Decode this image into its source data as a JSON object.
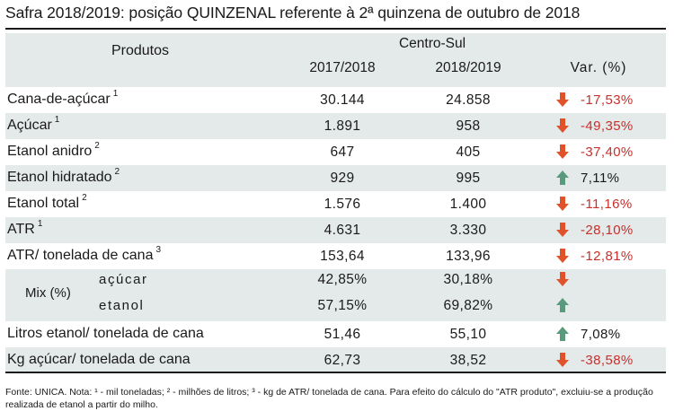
{
  "title": "Safra 2018/2019: posição QUINZENAL referente à 2ª quinzena de outubro de 2018",
  "header": {
    "produtos": "Produtos",
    "region": "Centro-Sul",
    "col1": "2017/2018",
    "col2": "2018/2019",
    "col3": "Var. (%)"
  },
  "rows": [
    {
      "label": "Cana-de-açúcar",
      "sup": "1",
      "v1": "30.144",
      "v2": "24.858",
      "var": "-17,53%",
      "trend": "down"
    },
    {
      "label": "Açúcar",
      "sup": "1",
      "v1": "1.891",
      "v2": "958",
      "var": "-49,35%",
      "trend": "down"
    },
    {
      "label": "Etanol anidro",
      "sup": "2",
      "v1": "647",
      "v2": "405",
      "var": "-37,40%",
      "trend": "down"
    },
    {
      "label": "Etanol hidratado",
      "sup": "2",
      "v1": "929",
      "v2": "995",
      "var": "7,11%",
      "trend": "up"
    },
    {
      "label": "Etanol total",
      "sup": "2",
      "v1": "1.576",
      "v2": "1.400",
      "var": "-11,16%",
      "trend": "down"
    },
    {
      "label": "ATR",
      "sup": "1",
      "v1": "4.631",
      "v2": "3.330",
      "var": "-28,10%",
      "trend": "down"
    },
    {
      "label": "ATR/ tonelada de cana",
      "sup": "3",
      "v1": "153,64",
      "v2": "133,96",
      "var": "-12,81%",
      "trend": "down"
    }
  ],
  "mix": {
    "label": "Mix (%)",
    "acucar": {
      "label": "açúcar",
      "v1": "42,85%",
      "v2": "30,18%",
      "trend": "down"
    },
    "etanol": {
      "label": "etanol",
      "v1": "57,15%",
      "v2": "69,82%",
      "trend": "up"
    }
  },
  "bottom_rows": [
    {
      "label": "Litros etanol/ tonelada de cana",
      "v1": "51,46",
      "v2": "55,10",
      "var": "7,08%",
      "trend": "up"
    },
    {
      "label": "Kg açúcar/ tonelada de cana",
      "v1": "62,73",
      "v2": "38,52",
      "var": "-38,58%",
      "trend": "down"
    }
  ],
  "footer": "Fonte: UNICA. Nota: ¹ - mil toneladas; ² - milhões de litros; ³ - kg de ATR/ tonelada de cana. Para efeito do cálculo do \"ATR produto\", excluiu-se a produção realizada de etanol a partir do milho.",
  "colors": {
    "shade": "#e4e9ea",
    "down": "#e0532a",
    "up": "#5a9a7c",
    "negtext": "#c8302b"
  },
  "icons": {
    "down": "arrow-down-icon",
    "up": "arrow-up-icon"
  }
}
